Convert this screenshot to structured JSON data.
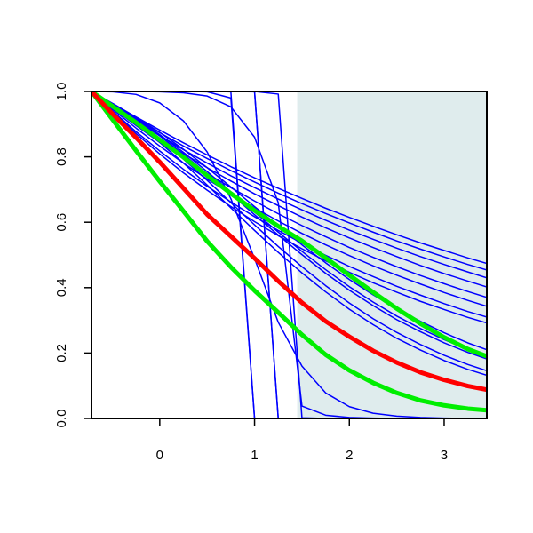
{
  "chart_data": {
    "type": "line",
    "title": "",
    "xlabel": "",
    "ylabel": "",
    "xlim": [
      -0.72,
      3.45
    ],
    "ylim": [
      0.0,
      1.0
    ],
    "x_ticks": [
      0,
      1,
      2,
      3
    ],
    "y_ticks": [
      0.0,
      0.2,
      0.4,
      0.6,
      0.8,
      1.0
    ],
    "x_tick_labels": [
      "0",
      "1",
      "2",
      "3"
    ],
    "y_tick_labels": [
      "0.0",
      "0.2",
      "0.4",
      "0.6",
      "0.8",
      "1.0"
    ],
    "grid": false,
    "shaded_region": {
      "x_from": 1.45,
      "x_to": 3.45,
      "color": "#dfeced"
    },
    "x": [
      -0.72,
      -0.5,
      -0.25,
      0.0,
      0.25,
      0.5,
      0.75,
      1.0,
      1.25,
      1.5,
      1.75,
      2.0,
      2.25,
      2.5,
      2.75,
      3.0,
      3.25,
      3.45
    ],
    "series": [
      {
        "color": "#0000ff",
        "width": 1.5,
        "values": [
          1.0,
          0.963,
          0.922,
          0.882,
          0.843,
          0.806,
          0.77,
          0.736,
          0.704,
          0.673,
          0.643,
          0.615,
          0.588,
          0.562,
          0.537,
          0.514,
          0.491,
          0.474
        ]
      },
      {
        "color": "#0000ff",
        "width": 1.5,
        "values": [
          1.0,
          0.957,
          0.91,
          0.865,
          0.822,
          0.781,
          0.742,
          0.706,
          0.671,
          0.638,
          0.606,
          0.576,
          0.548,
          0.521,
          0.495,
          0.471,
          0.448,
          0.43
        ]
      },
      {
        "color": "#0000ff",
        "width": 1.5,
        "values": [
          1.0,
          0.96,
          0.916,
          0.874,
          0.833,
          0.795,
          0.758,
          0.723,
          0.689,
          0.657,
          0.627,
          0.598,
          0.57,
          0.543,
          0.518,
          0.494,
          0.471,
          0.454
        ]
      },
      {
        "color": "#0000ff",
        "width": 1.5,
        "values": [
          1.0,
          0.954,
          0.904,
          0.856,
          0.81,
          0.767,
          0.726,
          0.687,
          0.651,
          0.616,
          0.583,
          0.552,
          0.523,
          0.495,
          0.468,
          0.443,
          0.42,
          0.402
        ]
      },
      {
        "color": "#0000ff",
        "width": 1.5,
        "values": [
          1.0,
          0.95,
          0.896,
          0.844,
          0.795,
          0.749,
          0.706,
          0.665,
          0.626,
          0.59,
          0.556,
          0.523,
          0.493,
          0.464,
          0.437,
          0.412,
          0.388,
          0.37
        ]
      },
      {
        "color": "#0000ff",
        "width": 1.5,
        "values": [
          1.0,
          0.946,
          0.888,
          0.833,
          0.781,
          0.732,
          0.687,
          0.644,
          0.604,
          0.566,
          0.531,
          0.498,
          0.467,
          0.438,
          0.411,
          0.385,
          0.361,
          0.343
        ]
      },
      {
        "color": "#0000ff",
        "width": 1.5,
        "values": [
          1.0,
          0.941,
          0.877,
          0.818,
          0.762,
          0.71,
          0.662,
          0.617,
          0.575,
          0.536,
          0.499,
          0.465,
          0.434,
          0.404,
          0.377,
          0.351,
          0.327,
          0.31
        ]
      },
      {
        "color": "#0000ff",
        "width": 1.5,
        "values": [
          1.0,
          0.938,
          0.871,
          0.809,
          0.751,
          0.698,
          0.648,
          0.602,
          0.559,
          0.519,
          0.482,
          0.447,
          0.415,
          0.386,
          0.358,
          0.333,
          0.309,
          0.292
        ]
      },
      {
        "color": "#0000ff",
        "width": 1.5,
        "values": [
          1.0,
          0.961,
          0.914,
          0.864,
          0.808,
          0.748,
          0.686,
          0.623,
          0.561,
          0.501,
          0.444,
          0.392,
          0.345,
          0.302,
          0.265,
          0.231,
          0.202,
          0.182
        ]
      },
      {
        "color": "#0000ff",
        "width": 1.5,
        "values": [
          1.0,
          0.964,
          0.921,
          0.875,
          0.823,
          0.767,
          0.708,
          0.648,
          0.589,
          0.531,
          0.476,
          0.425,
          0.378,
          0.335,
          0.297,
          0.262,
          0.231,
          0.21
        ]
      },
      {
        "color": "#0000ff",
        "width": 1.5,
        "values": [
          1.0,
          0.962,
          0.917,
          0.868,
          0.814,
          0.755,
          0.693,
          0.631,
          0.57,
          0.511,
          0.455,
          0.403,
          0.356,
          0.313,
          0.275,
          0.241,
          0.211,
          0.191
        ]
      },
      {
        "color": "#0000ff",
        "width": 1.5,
        "values": [
          1.0,
          0.958,
          0.908,
          0.853,
          0.793,
          0.728,
          0.66,
          0.592,
          0.526,
          0.464,
          0.406,
          0.353,
          0.305,
          0.263,
          0.226,
          0.193,
          0.165,
          0.146
        ]
      },
      {
        "color": "#0000ff",
        "width": 1.5,
        "values": [
          1.0,
          0.955,
          0.902,
          0.844,
          0.781,
          0.714,
          0.644,
          0.575,
          0.508,
          0.445,
          0.387,
          0.334,
          0.287,
          0.245,
          0.209,
          0.177,
          0.15,
          0.132
        ]
      },
      {
        "color": "#0000ff",
        "width": 1.5,
        "values": [
          1.0,
          1.0,
          1.0,
          1.0,
          1.0,
          0.999,
          0.98,
          0.0,
          0.0,
          0.0,
          0.0,
          0.0,
          0.0,
          0.0,
          0.0,
          0.0,
          0.0,
          0.0
        ]
      },
      {
        "color": "#0000ff",
        "width": 1.5,
        "values": [
          1.0,
          1.0,
          1.0,
          1.0,
          1.0,
          1.0,
          0.999,
          0.0,
          0.0,
          0.0,
          0.0,
          0.0,
          0.0,
          0.0,
          0.0,
          0.0,
          0.0,
          0.0
        ]
      },
      {
        "color": "#0000ff",
        "width": 1.5,
        "values": [
          1.0,
          1.0,
          1.0,
          1.0,
          1.0,
          1.0,
          1.0,
          0.999,
          0.0,
          0.0,
          0.0,
          0.0,
          0.0,
          0.0,
          0.0,
          0.0,
          0.0,
          0.0
        ]
      },
      {
        "color": "#0000ff",
        "width": 1.5,
        "values": [
          1.0,
          1.0,
          1.0,
          1.0,
          1.0,
          1.0,
          1.0,
          1.0,
          0.0,
          0.0,
          0.0,
          0.0,
          0.0,
          0.0,
          0.0,
          0.0,
          0.0,
          0.0
        ]
      },
      {
        "color": "#0000ff",
        "width": 1.5,
        "values": [
          1.0,
          1.0,
          1.0,
          1.0,
          1.0,
          1.0,
          1.0,
          1.0,
          0.992,
          0.002,
          0.0,
          0.0,
          0.0,
          0.0,
          0.0,
          0.0,
          0.0,
          0.0
        ]
      },
      {
        "color": "#0000ff",
        "width": 1.5,
        "values": [
          1.0,
          1.0,
          1.0,
          0.999,
          0.996,
          0.986,
          0.953,
          0.86,
          0.66,
          0.038,
          0.01,
          0.003,
          0.001,
          0.0,
          0.0,
          0.0,
          0.0,
          0.0
        ]
      },
      {
        "color": "#0000ff",
        "width": 1.5,
        "values": [
          1.0,
          0.999,
          0.991,
          0.965,
          0.91,
          0.815,
          0.672,
          0.489,
          0.294,
          0.16,
          0.078,
          0.036,
          0.016,
          0.007,
          0.003,
          0.001,
          0.0,
          0.0
        ]
      },
      {
        "color": "#00ee00",
        "width": 5,
        "values": [
          1.0,
          0.955,
          0.905,
          0.852,
          0.799,
          0.743,
          0.688,
          0.636,
          0.588,
          0.543,
          0.491,
          0.438,
          0.386,
          0.336,
          0.29,
          0.248,
          0.212,
          0.19
        ]
      },
      {
        "color": "#00ee00",
        "width": 5,
        "values": [
          1.0,
          0.915,
          0.819,
          0.725,
          0.634,
          0.542,
          0.463,
          0.391,
          0.324,
          0.256,
          0.195,
          0.147,
          0.109,
          0.078,
          0.055,
          0.04,
          0.03,
          0.025
        ]
      },
      {
        "color": "#ff0000",
        "width": 5,
        "values": [
          1.0,
          0.932,
          0.859,
          0.784,
          0.704,
          0.624,
          0.557,
          0.49,
          0.42,
          0.354,
          0.297,
          0.25,
          0.207,
          0.171,
          0.141,
          0.118,
          0.099,
          0.088
        ]
      }
    ]
  }
}
